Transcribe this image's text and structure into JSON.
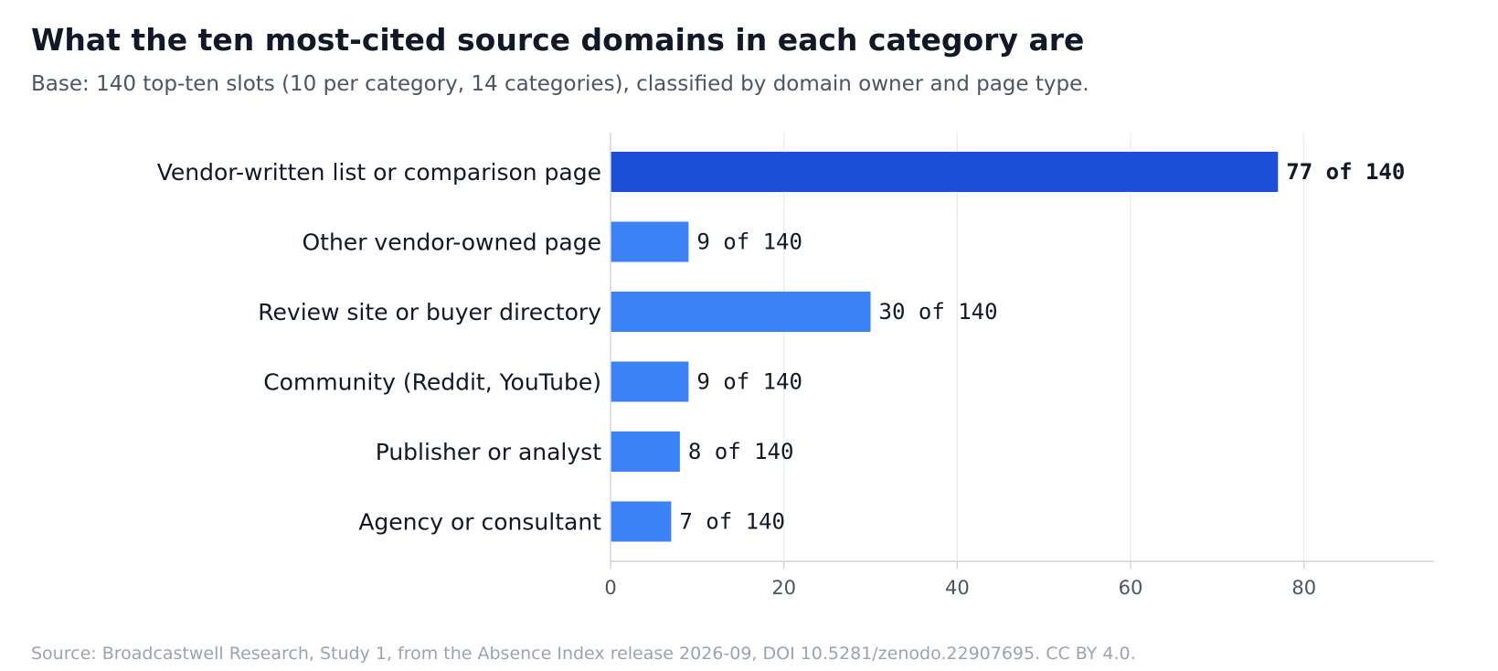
{
  "header": {
    "title": "What the ten most-cited source domains in each category are",
    "subtitle": "Base: 140 top-ten slots (10 per category, 14 categories), classified by domain owner and page type."
  },
  "footer": {
    "source": "Source: Broadcastwell Research, Study 1, from the Absence Index release 2026-09, DOI 10.5281/zenodo.22907695. CC BY 4.0."
  },
  "chart_data": {
    "type": "bar",
    "orientation": "horizontal",
    "title": "What the ten most-cited source domains in each category are",
    "subtitle": "Base: 140 top-ten slots (10 per category, 14 categories), classified by domain owner and page type.",
    "xlabel": "",
    "ylabel": "",
    "categories": [
      "Vendor-written list or comparison page",
      "Other vendor-owned page",
      "Review site or buyer directory",
      "Community (Reddit, YouTube)",
      "Publisher or analyst",
      "Agency or consultant"
    ],
    "values": [
      77,
      9,
      30,
      9,
      8,
      7
    ],
    "value_labels": [
      "77 of 140",
      "9 of 140",
      "30 of 140",
      "9 of 140",
      "8 of 140",
      "7 of 140"
    ],
    "highlight_index": 0,
    "xlim": [
      0,
      95
    ],
    "xticks": [
      0,
      20,
      40,
      60,
      80
    ],
    "grid": "vertical",
    "legend": "none",
    "colors": {
      "highlight": "#1d4ed8",
      "bar": "#3b82f6",
      "grid": "#e5e7eb",
      "axis": "#d1d5db"
    }
  }
}
